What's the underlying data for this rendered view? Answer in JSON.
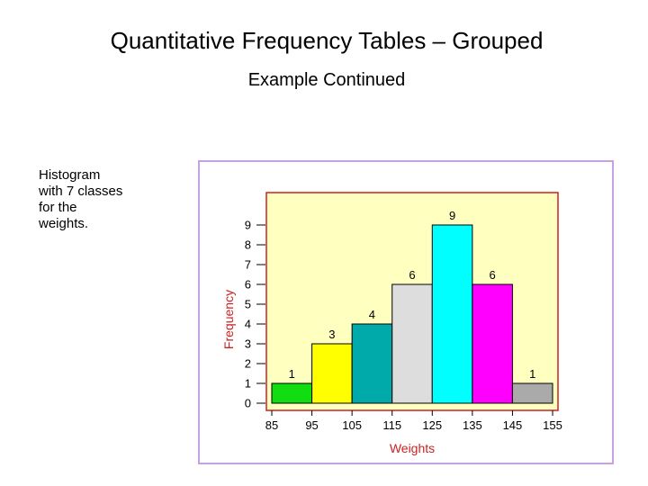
{
  "slide": {
    "title": "Quantitative Frequency Tables – Grouped",
    "subtitle": "Example Continued",
    "note": "Histogram\nwith 7 classes\nfor the\nweights."
  },
  "chart_data": {
    "type": "bar",
    "title": "",
    "xlabel": "Weights",
    "ylabel": "Frequency",
    "x_ticks": [
      85,
      95,
      105,
      115,
      125,
      135,
      145,
      155
    ],
    "bins": [
      [
        85,
        95
      ],
      [
        95,
        105
      ],
      [
        105,
        115
      ],
      [
        115,
        125
      ],
      [
        125,
        135
      ],
      [
        135,
        145
      ],
      [
        145,
        155
      ]
    ],
    "values": [
      1,
      3,
      4,
      6,
      9,
      6,
      1
    ],
    "colors": [
      "#11dd11",
      "#ffff00",
      "#00aaaa",
      "#dddddd",
      "#00ffff",
      "#ff00ff",
      "#aaaaaa"
    ],
    "y_ticks": [
      0,
      1,
      2,
      3,
      4,
      5,
      6,
      7,
      8,
      9
    ],
    "ylim": [
      0,
      10
    ],
    "xlim": [
      85,
      155
    ],
    "plot_background": "#ffffc0",
    "plot_border": "#cc2222",
    "grid": false
  }
}
